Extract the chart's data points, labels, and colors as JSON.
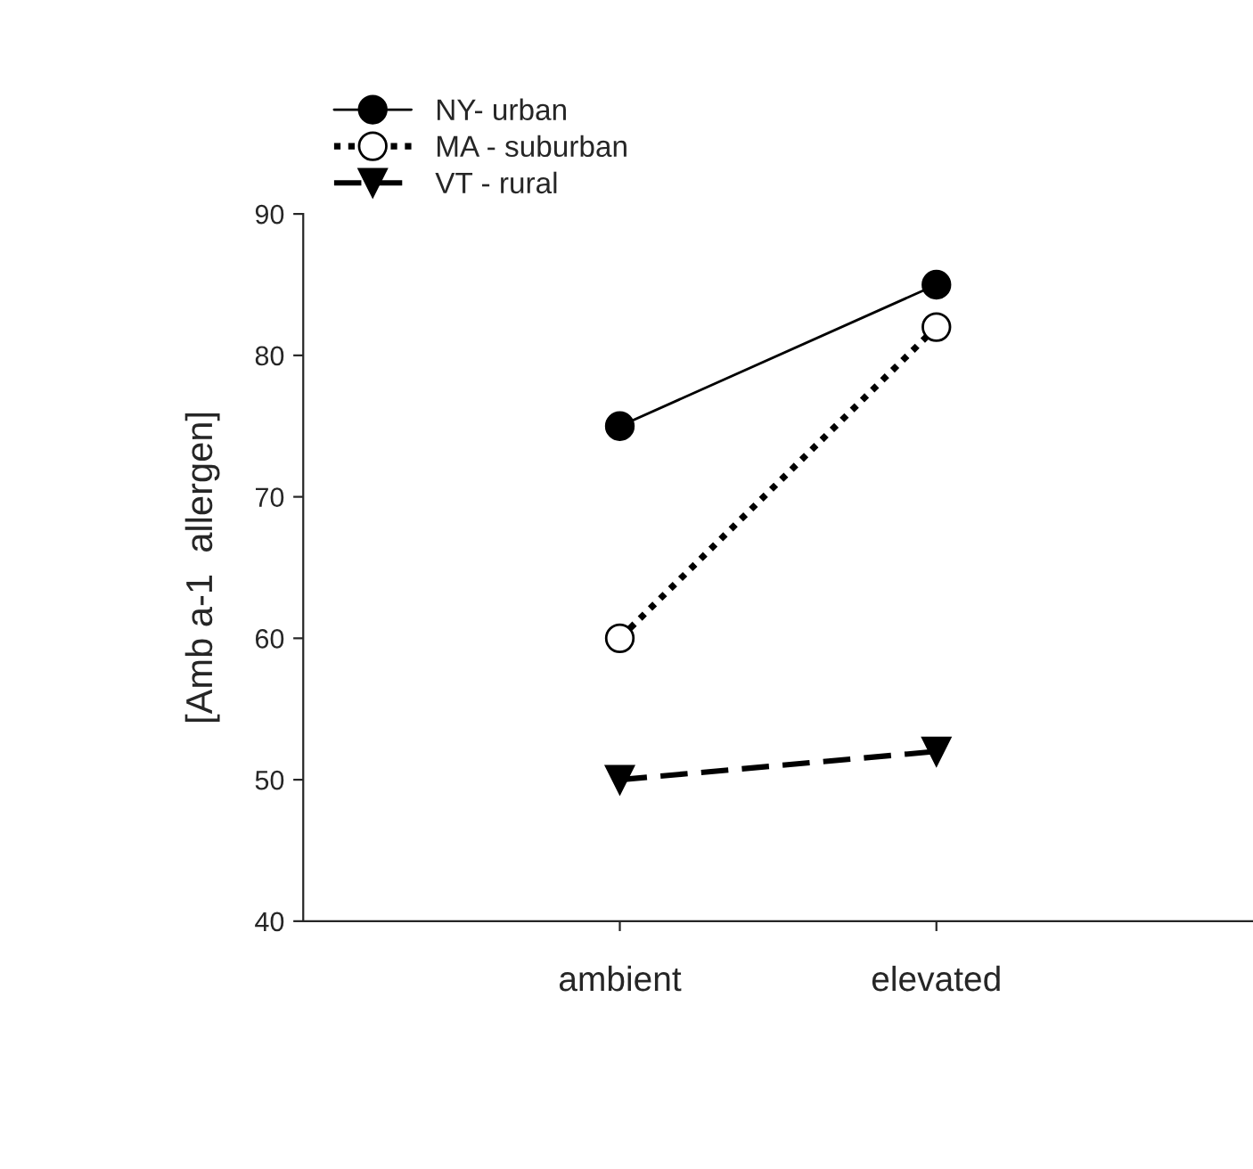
{
  "chart_data": {
    "type": "line",
    "ylabel": "[Amb a-1  allergen]",
    "categories": [
      "ambient",
      "elevated"
    ],
    "series": [
      {
        "name": "NY- urban",
        "color": "#000000",
        "values": [
          75,
          85
        ],
        "marker": "circle",
        "line_style": "solid"
      },
      {
        "name": "MA - suburban",
        "color": "#000000",
        "values": [
          60,
          82
        ],
        "marker": "circle",
        "line_style": "dotted"
      },
      {
        "name": "VT - rural",
        "color": "#000000",
        "values": [
          50,
          52
        ],
        "marker": "triangle",
        "line_style": "dashed"
      }
    ],
    "ylim": [
      40,
      90
    ],
    "yticks": [
      40,
      50,
      60,
      70,
      80,
      90
    ],
    "grid": false,
    "legend": "top left"
  }
}
